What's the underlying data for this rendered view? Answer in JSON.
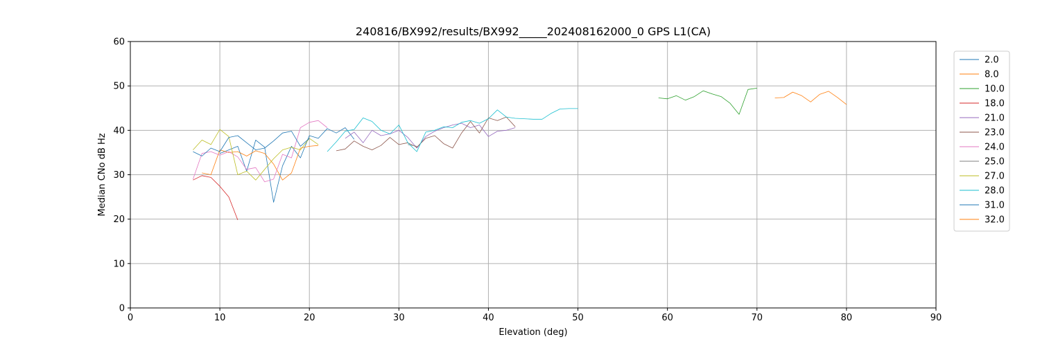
{
  "chart_data": {
    "type": "line",
    "title": "240816/BX992/results/BX992_____202408162000_0 GPS L1(CA)",
    "xlabel": "Elevation (deg)",
    "ylabel": "Median CNo dB Hz",
    "xlim": [
      0,
      90
    ],
    "ylim": [
      0,
      60
    ],
    "xticks": [
      "0",
      "10",
      "20",
      "30",
      "40",
      "50",
      "60",
      "70",
      "80",
      "90"
    ],
    "yticks": [
      "0",
      "10",
      "20",
      "30",
      "40",
      "50",
      "60"
    ],
    "grid": true,
    "legend_position": "right",
    "series": [
      {
        "name": "2.0",
        "color": "#1f77b4",
        "points": [
          [
            10,
            34.8
          ],
          [
            11,
            35.6
          ],
          [
            12,
            36.4
          ],
          [
            13,
            30.8
          ],
          [
            14,
            37.8
          ],
          [
            15,
            36.2
          ],
          [
            16,
            23.8
          ],
          [
            17,
            32.0
          ],
          [
            18,
            36.4
          ],
          [
            19,
            33.8
          ],
          [
            20,
            38.8
          ],
          [
            21,
            38.2
          ],
          [
            22,
            40.4
          ],
          [
            23,
            39.4
          ],
          [
            24,
            40.6
          ],
          [
            25,
            38.0
          ]
        ]
      },
      {
        "name": "8.0",
        "color": "#ff7f0e",
        "points": [
          [
            8,
            30.4
          ],
          [
            9,
            30.0
          ],
          [
            10,
            35.6
          ],
          [
            11,
            35.0
          ],
          [
            12,
            35.2
          ],
          [
            13,
            34.2
          ],
          [
            14,
            35.4
          ],
          [
            15,
            34.8
          ],
          [
            16,
            32.4
          ],
          [
            17,
            28.8
          ],
          [
            18,
            30.4
          ],
          [
            19,
            36.0
          ],
          [
            20,
            36.4
          ],
          [
            21,
            36.6
          ]
        ]
      },
      {
        "name": "10.0",
        "color": "#2ca02c",
        "points": [
          [
            59,
            47.3
          ],
          [
            60,
            47.1
          ],
          [
            61,
            47.8
          ],
          [
            62,
            46.8
          ],
          [
            63,
            47.6
          ],
          [
            64,
            48.9
          ],
          [
            65,
            48.2
          ],
          [
            66,
            47.6
          ],
          [
            67,
            46.1
          ],
          [
            68,
            43.6
          ],
          [
            69,
            49.2
          ],
          [
            70,
            49.5
          ]
        ]
      },
      {
        "name": "18.0",
        "color": "#d62728",
        "points": [
          [
            7,
            28.8
          ],
          [
            8,
            29.8
          ],
          [
            9,
            29.4
          ],
          [
            10,
            27.4
          ],
          [
            11,
            25.0
          ],
          [
            12,
            19.8
          ]
        ]
      },
      {
        "name": "21.0",
        "color": "#9467bd",
        "points": [
          [
            24,
            38.2
          ],
          [
            25,
            39.6
          ],
          [
            26,
            37.2
          ],
          [
            27,
            40.0
          ],
          [
            28,
            38.8
          ],
          [
            29,
            39.2
          ],
          [
            30,
            40.0
          ],
          [
            31,
            38.4
          ],
          [
            32,
            36.0
          ],
          [
            33,
            38.6
          ],
          [
            34,
            39.8
          ],
          [
            35,
            40.6
          ],
          [
            36,
            41.2
          ],
          [
            37,
            41.6
          ],
          [
            38,
            40.6
          ],
          [
            39,
            41.2
          ],
          [
            40,
            38.6
          ],
          [
            41,
            39.8
          ],
          [
            42,
            40.0
          ],
          [
            43,
            40.6
          ]
        ]
      },
      {
        "name": "23.0",
        "color": "#8c564b",
        "points": [
          [
            23,
            35.4
          ],
          [
            24,
            35.8
          ],
          [
            25,
            37.6
          ],
          [
            26,
            36.4
          ],
          [
            27,
            35.6
          ],
          [
            28,
            36.6
          ],
          [
            29,
            38.4
          ],
          [
            30,
            36.8
          ],
          [
            31,
            37.2
          ],
          [
            32,
            36.2
          ],
          [
            33,
            38.2
          ],
          [
            34,
            38.8
          ],
          [
            35,
            37.0
          ],
          [
            36,
            36.0
          ],
          [
            37,
            39.4
          ],
          [
            38,
            42.0
          ],
          [
            39,
            39.4
          ],
          [
            40,
            42.8
          ],
          [
            41,
            42.2
          ],
          [
            42,
            43.0
          ],
          [
            43,
            40.8
          ]
        ]
      },
      {
        "name": "24.0",
        "color": "#e377c2",
        "points": [
          [
            7,
            29.0
          ],
          [
            8,
            34.8
          ],
          [
            9,
            35.2
          ],
          [
            10,
            34.4
          ],
          [
            11,
            35.2
          ],
          [
            12,
            34.0
          ],
          [
            13,
            31.2
          ],
          [
            14,
            31.6
          ],
          [
            15,
            28.4
          ],
          [
            16,
            29.0
          ],
          [
            17,
            34.6
          ],
          [
            18,
            33.8
          ],
          [
            19,
            40.6
          ],
          [
            20,
            41.8
          ],
          [
            21,
            42.2
          ],
          [
            22,
            40.6
          ]
        ]
      },
      {
        "name": "25.0",
        "color": "#7f7f7f",
        "points": [
          [
            31,
            36.8
          ],
          [
            32,
            36.4
          ]
        ]
      },
      {
        "name": "27.0",
        "color": "#bcbd22",
        "points": [
          [
            7,
            35.6
          ],
          [
            8,
            37.8
          ],
          [
            9,
            36.8
          ],
          [
            10,
            40.2
          ],
          [
            11,
            38.6
          ],
          [
            12,
            30.0
          ],
          [
            13,
            30.8
          ],
          [
            14,
            28.8
          ],
          [
            15,
            31.2
          ],
          [
            16,
            33.6
          ],
          [
            17,
            35.6
          ],
          [
            18,
            36.2
          ],
          [
            19,
            35.6
          ],
          [
            20,
            38.2
          ],
          [
            21,
            36.8
          ]
        ]
      },
      {
        "name": "28.0",
        "color": "#17becf",
        "points": [
          [
            22,
            35.2
          ],
          [
            23,
            37.4
          ],
          [
            24,
            39.8
          ],
          [
            25,
            40.2
          ],
          [
            26,
            42.8
          ],
          [
            27,
            42.0
          ],
          [
            28,
            40.0
          ],
          [
            29,
            39.2
          ],
          [
            30,
            41.2
          ],
          [
            31,
            37.2
          ],
          [
            32,
            35.2
          ],
          [
            33,
            39.6
          ],
          [
            34,
            40.0
          ],
          [
            35,
            40.8
          ],
          [
            36,
            40.6
          ],
          [
            37,
            41.8
          ],
          [
            38,
            42.2
          ],
          [
            39,
            41.6
          ],
          [
            40,
            42.6
          ],
          [
            41,
            44.6
          ],
          [
            42,
            43.0
          ],
          [
            43,
            42.7
          ],
          [
            44,
            42.6
          ],
          [
            45,
            42.5
          ],
          [
            46,
            42.5
          ],
          [
            47,
            43.8
          ],
          [
            48,
            44.8
          ],
          [
            49,
            44.9
          ],
          [
            50,
            44.9
          ]
        ]
      },
      {
        "name": "31.0",
        "color": "#1f77b4",
        "points": [
          [
            7,
            35.2
          ],
          [
            8,
            34.2
          ],
          [
            9,
            36.0
          ],
          [
            10,
            35.2
          ],
          [
            11,
            38.4
          ],
          [
            12,
            38.8
          ],
          [
            13,
            37.2
          ],
          [
            14,
            35.6
          ],
          [
            15,
            36.0
          ],
          [
            16,
            37.6
          ],
          [
            17,
            39.4
          ],
          [
            18,
            39.8
          ],
          [
            19,
            36.4
          ],
          [
            20,
            38.2
          ]
        ]
      },
      {
        "name": "32.0",
        "color": "#ff7f0e",
        "points": [
          [
            72,
            47.3
          ],
          [
            73,
            47.4
          ],
          [
            74,
            48.6
          ],
          [
            75,
            47.8
          ],
          [
            76,
            46.4
          ],
          [
            77,
            48.1
          ],
          [
            78,
            48.8
          ],
          [
            79,
            47.4
          ],
          [
            80,
            45.8
          ]
        ]
      }
    ]
  }
}
